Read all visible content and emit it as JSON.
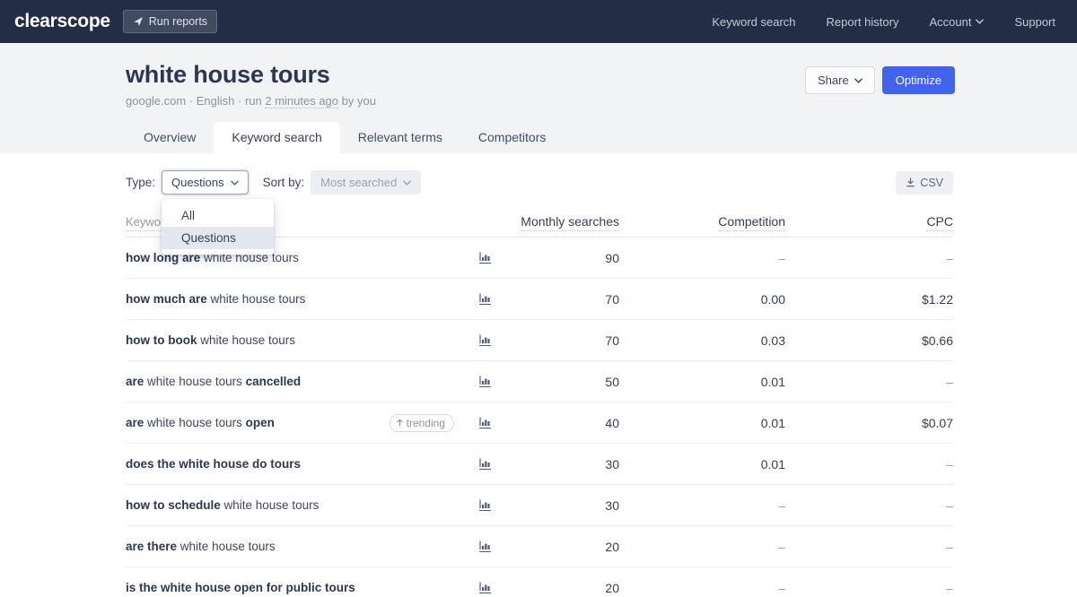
{
  "colors": {
    "accent": "#4263eb",
    "nav_bg": "#232d45",
    "header_bg": "#f1f3f5"
  },
  "nav": {
    "brand": "clearscope",
    "run_reports_label": "Run reports",
    "links": [
      "Keyword search",
      "Report history",
      "Account",
      "Support"
    ]
  },
  "header": {
    "title": "white house tours",
    "meta_prefix": "google.com · English · run ",
    "meta_link": "2 minutes ago",
    "meta_suffix": " by you",
    "share_label": "Share",
    "optimize_label": "Optimize"
  },
  "tabs": [
    "Overview",
    "Keyword search",
    "Relevant terms",
    "Competitors"
  ],
  "filters": {
    "type_label": "Type:",
    "type_value": "Questions",
    "sort_label": "Sort by:",
    "sort_value": "Most searched",
    "csv_label": "CSV",
    "menu_items": [
      "All",
      "Questions"
    ],
    "menu_selected": "Questions"
  },
  "icons": {
    "run_reports": "paper-plane",
    "dropdowns": "chevron-down",
    "csv": "download-arrow",
    "keyword_row": "bar-chart",
    "trending": "arrow-up"
  },
  "table": {
    "headers": {
      "keyword": "Keyword",
      "monthly": "Monthly searches",
      "competition": "Competition",
      "cpc": "CPC"
    },
    "trending_label": "trending",
    "rows": [
      {
        "keyword": [
          {
            "text": "how long are",
            "bold": true
          },
          {
            "text": " white house tours",
            "bold": false
          }
        ],
        "trending": false,
        "monthly": "90",
        "competition": "–",
        "cpc": "–"
      },
      {
        "keyword": [
          {
            "text": "how much are",
            "bold": true
          },
          {
            "text": " white house tours",
            "bold": false
          }
        ],
        "trending": false,
        "monthly": "70",
        "competition": "0.00",
        "cpc": "$1.22"
      },
      {
        "keyword": [
          {
            "text": "how to book",
            "bold": true
          },
          {
            "text": " white house tours",
            "bold": false
          }
        ],
        "trending": false,
        "monthly": "70",
        "competition": "0.03",
        "cpc": "$0.66"
      },
      {
        "keyword": [
          {
            "text": "are",
            "bold": true
          },
          {
            "text": " white house tours ",
            "bold": false
          },
          {
            "text": "cancelled",
            "bold": true
          }
        ],
        "trending": false,
        "monthly": "50",
        "competition": "0.01",
        "cpc": "–"
      },
      {
        "keyword": [
          {
            "text": "are",
            "bold": true
          },
          {
            "text": " white house tours ",
            "bold": false
          },
          {
            "text": "open",
            "bold": true
          }
        ],
        "trending": true,
        "monthly": "40",
        "competition": "0.01",
        "cpc": "$0.07"
      },
      {
        "keyword": [
          {
            "text": "does the white house do tours",
            "bold": true
          }
        ],
        "trending": false,
        "monthly": "30",
        "competition": "0.01",
        "cpc": "–"
      },
      {
        "keyword": [
          {
            "text": "how to schedule",
            "bold": true
          },
          {
            "text": " white house tours",
            "bold": false
          }
        ],
        "trending": false,
        "monthly": "30",
        "competition": "–",
        "cpc": "–"
      },
      {
        "keyword": [
          {
            "text": "are there",
            "bold": true
          },
          {
            "text": " white house tours",
            "bold": false
          }
        ],
        "trending": false,
        "monthly": "20",
        "competition": "–",
        "cpc": "–"
      },
      {
        "keyword": [
          {
            "text": "is the white house open for public tours",
            "bold": true
          }
        ],
        "trending": false,
        "monthly": "20",
        "competition": "–",
        "cpc": "–"
      }
    ]
  }
}
